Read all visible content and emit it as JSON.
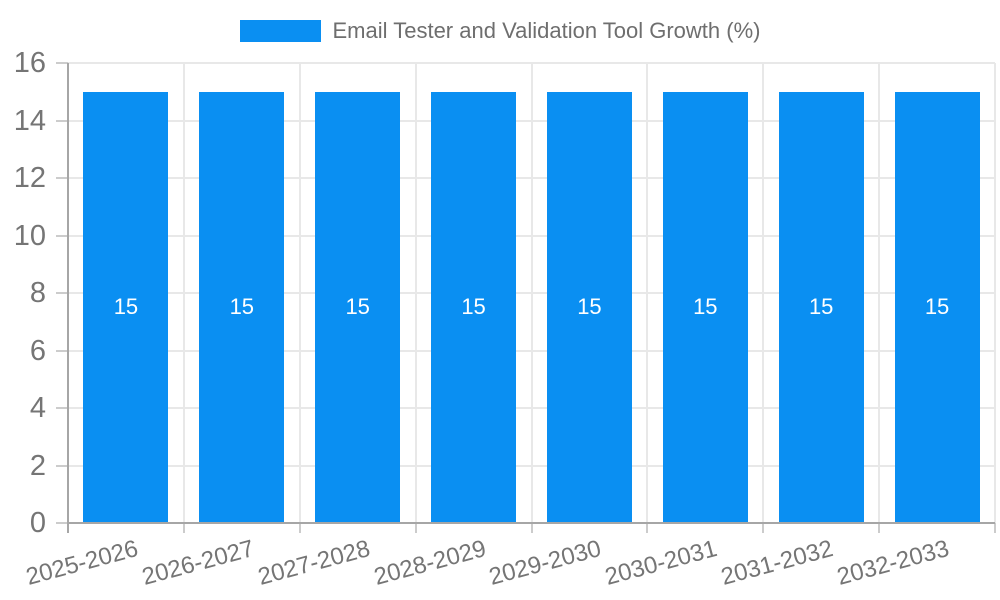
{
  "chart_data": {
    "type": "bar",
    "title": "Email Tester and Validation Tool Growth (%)",
    "categories": [
      "2025-2026",
      "2026-2027",
      "2027-2028",
      "2028-2029",
      "2029-2030",
      "2030-2031",
      "2031-2032",
      "2032-2033"
    ],
    "values": [
      15,
      15,
      15,
      15,
      15,
      15,
      15,
      15
    ],
    "bar_labels": [
      "15",
      "15",
      "15",
      "15",
      "15",
      "15",
      "15",
      "15"
    ],
    "xlabel": "",
    "ylabel": "",
    "ylim": [
      0,
      16
    ],
    "yticks": [
      0,
      2,
      4,
      6,
      8,
      10,
      12,
      14,
      16
    ],
    "grid": true,
    "legend_position": "top",
    "bar_label_position": "center",
    "colors": {
      "bar": "#0a8ff2",
      "grid": "#e8e8e8",
      "axis": "#a6a6a6",
      "tick": "#cccccc",
      "axis_text": "#757575",
      "title_text": "#6e6e6e",
      "bar_label_text": "#ffffff",
      "background": "#ffffff"
    }
  }
}
